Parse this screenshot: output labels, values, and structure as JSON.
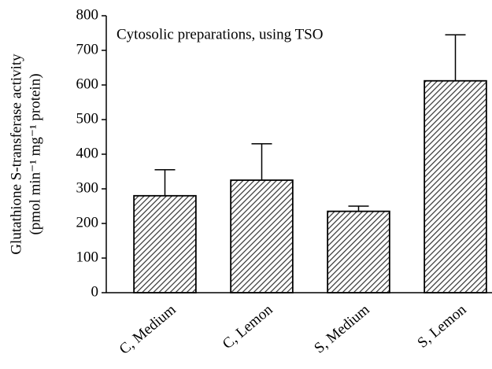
{
  "chart_data": {
    "type": "bar",
    "annotation": "Cytosolic preparations, using TSO",
    "y_label": [
      "Glutathione S-transferase activity",
      "(pmol min⁻¹ mg⁻¹ protein)"
    ],
    "categories": [
      "C, Medium",
      "C, Lemon",
      "S, Medium",
      "S, Lemon"
    ],
    "values": [
      280,
      325,
      235,
      612
    ],
    "errors": [
      75,
      105,
      15,
      133
    ],
    "color": "#555555",
    "ylim": [
      0,
      800
    ],
    "yticks": [
      0,
      100,
      200,
      300,
      400,
      500,
      600,
      700,
      800
    ],
    "grid": false
  }
}
